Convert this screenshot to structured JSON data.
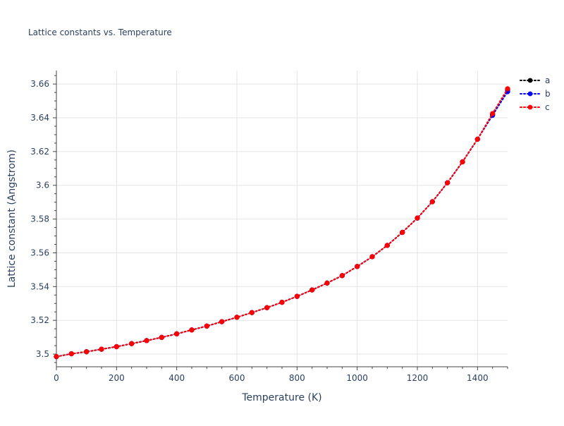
{
  "chart_data": {
    "type": "line",
    "title": "Lattice constants vs. Temperature",
    "xlabel": "Temperature (K)",
    "ylabel": "Lattice constant (Angstrom)",
    "xlim": [
      0,
      1500
    ],
    "ylim": [
      3.4925,
      3.668
    ],
    "x_ticks": [
      0,
      200,
      400,
      600,
      800,
      1000,
      1200,
      1400
    ],
    "x_tick_labels": [
      "0",
      "200",
      "400",
      "600",
      "800",
      "1000",
      "1200",
      "1400"
    ],
    "y_ticks": [
      3.5,
      3.52,
      3.54,
      3.56,
      3.58,
      3.6,
      3.62,
      3.64,
      3.66
    ],
    "y_tick_labels": [
      "3.5",
      "3.52",
      "3.54",
      "3.56",
      "3.58",
      "3.6",
      "3.62",
      "3.64",
      "3.66"
    ],
    "grid": true,
    "legend_position": "top-right",
    "x": [
      0,
      50,
      100,
      150,
      200,
      250,
      300,
      350,
      400,
      450,
      500,
      550,
      600,
      650,
      700,
      750,
      800,
      850,
      900,
      950,
      1000,
      1050,
      1100,
      1150,
      1200,
      1250,
      1300,
      1350,
      1400,
      1450,
      1500
    ],
    "series": [
      {
        "name": "a",
        "color": "#000000",
        "values": [
          3.4985,
          3.5002,
          3.5014,
          3.5029,
          3.5044,
          3.5062,
          3.508,
          3.5099,
          3.512,
          3.5143,
          3.5166,
          3.5192,
          3.5218,
          3.5246,
          3.5275,
          3.5307,
          3.5342,
          3.538,
          3.5421,
          3.5465,
          3.5519,
          3.5577,
          3.5644,
          3.5721,
          3.5806,
          3.5903,
          3.6015,
          3.6139,
          3.6273,
          3.6418,
          3.6565
        ]
      },
      {
        "name": "b",
        "color": "#0000ff",
        "values": [
          3.4985,
          3.5002,
          3.5014,
          3.5029,
          3.5044,
          3.5062,
          3.508,
          3.5099,
          3.512,
          3.5143,
          3.5166,
          3.5192,
          3.5218,
          3.5246,
          3.5275,
          3.5307,
          3.5342,
          3.538,
          3.5421,
          3.5465,
          3.5519,
          3.5577,
          3.5644,
          3.5721,
          3.5806,
          3.5903,
          3.6015,
          3.6139,
          3.6273,
          3.6415,
          3.6555
        ]
      },
      {
        "name": "c",
        "color": "#ff0000",
        "values": [
          3.4985,
          3.5002,
          3.5014,
          3.5029,
          3.5044,
          3.5062,
          3.508,
          3.5099,
          3.512,
          3.5143,
          3.5166,
          3.5192,
          3.5218,
          3.5246,
          3.5275,
          3.5307,
          3.5342,
          3.538,
          3.5421,
          3.5465,
          3.5519,
          3.5577,
          3.5644,
          3.5721,
          3.5806,
          3.5903,
          3.6015,
          3.6139,
          3.6273,
          3.6425,
          3.6572
        ]
      }
    ]
  }
}
